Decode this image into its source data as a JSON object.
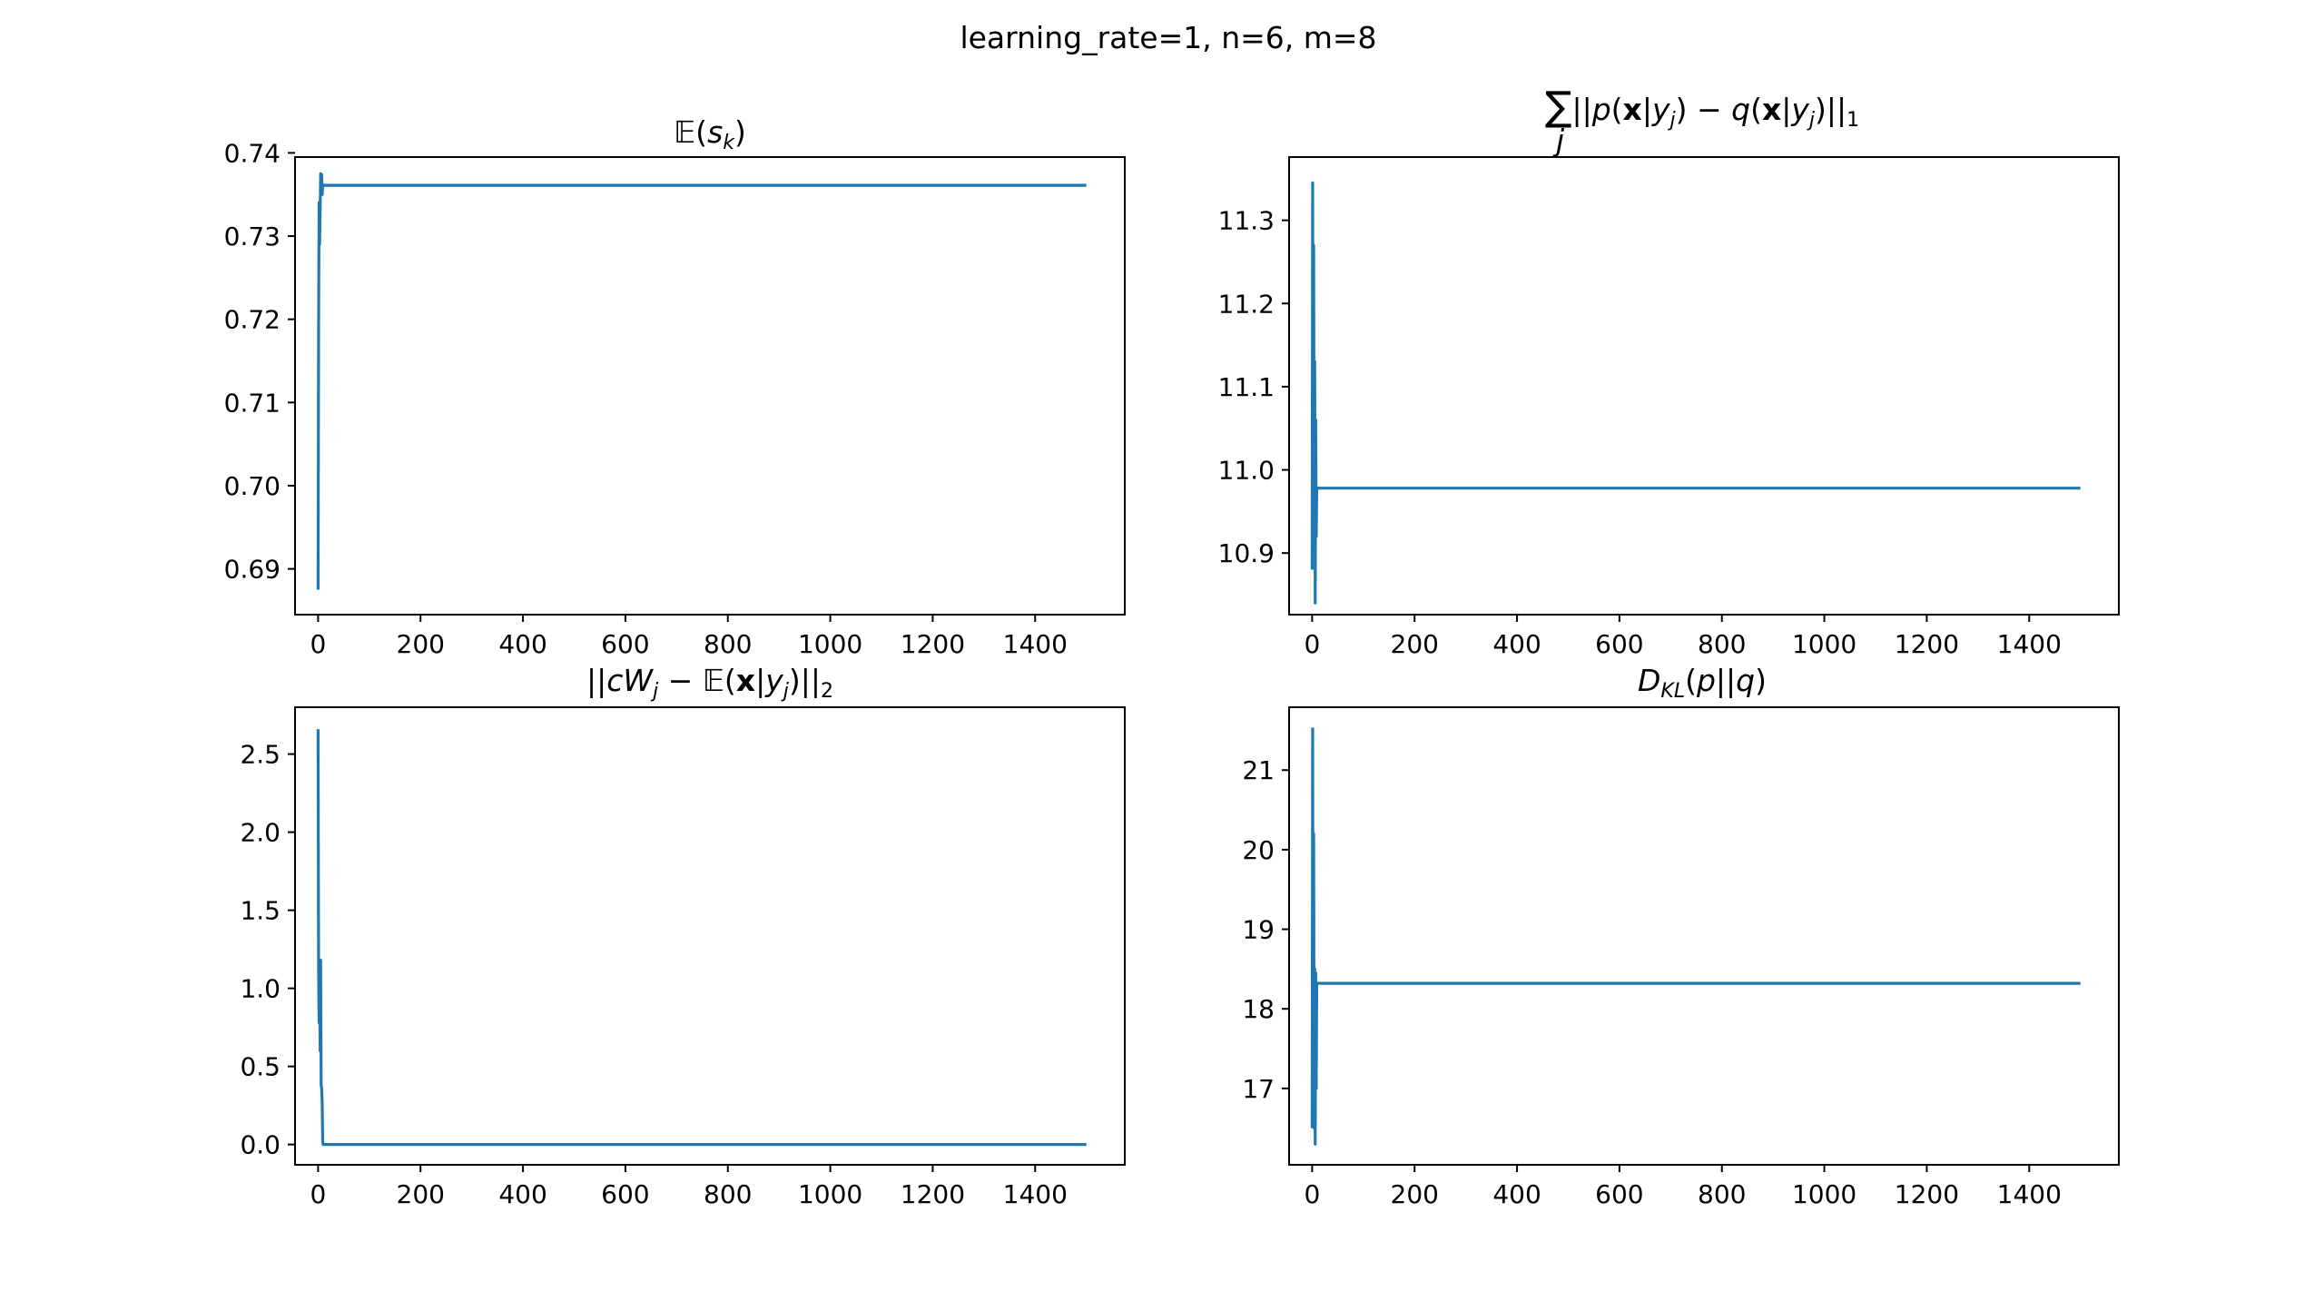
{
  "figure": {
    "suptitle": "learning_rate=1, n=6, m=8",
    "colors": {
      "series": "#1f77b4",
      "axes": "#000000",
      "background": "#ffffff"
    }
  },
  "chart_data": [
    {
      "type": "line",
      "title": "𝔼(s_k)",
      "xlabel": "",
      "ylabel": "",
      "xlim": [
        -45,
        1575
      ],
      "ylim": [
        0.6845,
        0.7395
      ],
      "xticks": [
        0,
        200,
        400,
        600,
        800,
        1000,
        1200,
        1400
      ],
      "yticks": [
        0.69,
        0.7,
        0.71,
        0.72,
        0.73,
        0.74
      ],
      "ytick_labels": [
        "0.69",
        "0.70",
        "0.71",
        "0.72",
        "0.73",
        "0.74"
      ],
      "grid": false,
      "series": [
        {
          "x": [
            0,
            1,
            2,
            3,
            4,
            5,
            6,
            7,
            8,
            9,
            10,
            11,
            12,
            13,
            1500
          ],
          "y": [
            0.6875,
            0.7185,
            0.734,
            0.729,
            0.733,
            0.7375,
            0.736,
            0.7374,
            0.735,
            0.7362,
            0.736,
            0.7361,
            0.7361,
            0.7361,
            0.7361
          ]
        }
      ]
    },
    {
      "type": "line",
      "title": "∑_j ||p(x|y_j) − q(x|y_j)||_1",
      "xlabel": "",
      "ylabel": "",
      "xlim": [
        -45,
        1575
      ],
      "ylim": [
        10.826,
        11.376
      ],
      "xticks": [
        0,
        200,
        400,
        600,
        800,
        1000,
        1200,
        1400
      ],
      "yticks": [
        10.9,
        11.0,
        11.1,
        11.2,
        11.3
      ],
      "ytick_labels": [
        "10.9",
        "11.0",
        "11.1",
        "11.2",
        "11.3"
      ],
      "grid": false,
      "series": [
        {
          "x": [
            0,
            1,
            2,
            3,
            4,
            5,
            6,
            7,
            8,
            9,
            10,
            11,
            12,
            13,
            1500
          ],
          "y": [
            10.88,
            11.345,
            10.9,
            11.27,
            10.92,
            11.13,
            10.84,
            11.06,
            10.92,
            10.978,
            10.978,
            10.978,
            10.978,
            10.978,
            10.978
          ]
        }
      ]
    },
    {
      "type": "line",
      "title": "||cW_j − 𝔼(x|y_j)||_2",
      "xlabel": "",
      "ylabel": "",
      "xlim": [
        -45,
        1575
      ],
      "ylim": [
        -0.13,
        2.8
      ],
      "xticks": [
        0,
        200,
        400,
        600,
        800,
        1000,
        1200,
        1400
      ],
      "yticks": [
        0.0,
        0.5,
        1.0,
        1.5,
        2.0,
        2.5
      ],
      "ytick_labels": [
        "0.0",
        "0.5",
        "1.0",
        "1.5",
        "2.0",
        "2.5"
      ],
      "grid": false,
      "series": [
        {
          "x": [
            0,
            1,
            2,
            3,
            4,
            5,
            6,
            7,
            8,
            9,
            10,
            11,
            12,
            13,
            1500
          ],
          "y": [
            2.66,
            1.1,
            0.78,
            1.17,
            0.6,
            1.18,
            0.38,
            0.36,
            0.27,
            0.02,
            0.0,
            0.0,
            0.0,
            0.0,
            0.0
          ]
        }
      ]
    },
    {
      "type": "line",
      "title": "D_KL(p||q)",
      "xlabel": "",
      "ylabel": "",
      "xlim": [
        -45,
        1575
      ],
      "ylim": [
        16.04,
        21.79
      ],
      "xticks": [
        0,
        200,
        400,
        600,
        800,
        1000,
        1200,
        1400
      ],
      "yticks": [
        17,
        18,
        19,
        20,
        21
      ],
      "ytick_labels": [
        "17",
        "18",
        "19",
        "20",
        "21"
      ],
      "grid": false,
      "series": [
        {
          "x": [
            0,
            1,
            2,
            3,
            4,
            5,
            6,
            7,
            8,
            9,
            10,
            11,
            12,
            13,
            1500
          ],
          "y": [
            16.5,
            21.52,
            16.8,
            20.2,
            16.5,
            18.5,
            16.3,
            18.45,
            17.0,
            18.32,
            18.32,
            18.32,
            18.32,
            18.32,
            18.32
          ]
        }
      ]
    }
  ]
}
